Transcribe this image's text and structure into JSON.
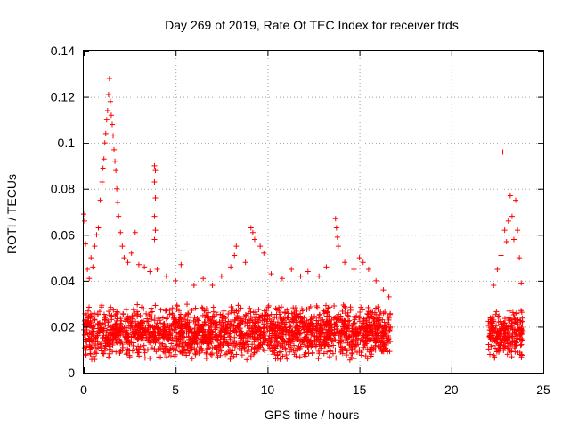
{
  "chart_data": {
    "type": "scatter",
    "title": "Day 269 of 2019, Rate Of TEC Index for receiver trds",
    "xlabel": "GPS time / hours",
    "ylabel": "ROTI / TECUs",
    "xlim": [
      0,
      25
    ],
    "ylim": [
      0,
      0.14
    ],
    "x_ticks": [
      0,
      5,
      10,
      15,
      20,
      25
    ],
    "y_ticks": [
      0,
      0.02,
      0.04,
      0.06,
      0.08,
      0.1,
      0.12,
      0.14
    ],
    "x_tick_labels": [
      "0",
      "5",
      "10",
      "15",
      "20",
      "25"
    ],
    "y_tick_labels": [
      "0",
      "0.02",
      "0.04",
      "0.06",
      "0.08",
      "0.1",
      "0.12",
      "0.14"
    ],
    "grid": true,
    "marker": "+",
    "color": "#ff0000",
    "series": [
      {
        "name": "ROTI",
        "segments": [
          {
            "x_range": [
              0.0,
              16.7
            ],
            "baseline_range": [
              0.005,
              0.03
            ]
          },
          {
            "x_range": [
              22.0,
              23.9
            ],
            "baseline_range": [
              0.006,
              0.028
            ]
          }
        ],
        "points": [
          {
            "x": 0.0,
            "y": 0.069
          },
          {
            "x": 0.05,
            "y": 0.066
          },
          {
            "x": 0.1,
            "y": 0.056
          },
          {
            "x": 0.2,
            "y": 0.045
          },
          {
            "x": 0.3,
            "y": 0.041
          },
          {
            "x": 0.4,
            "y": 0.05
          },
          {
            "x": 0.5,
            "y": 0.046
          },
          {
            "x": 0.6,
            "y": 0.055
          },
          {
            "x": 0.7,
            "y": 0.06
          },
          {
            "x": 0.8,
            "y": 0.063
          },
          {
            "x": 0.9,
            "y": 0.075
          },
          {
            "x": 1.0,
            "y": 0.083
          },
          {
            "x": 1.05,
            "y": 0.089
          },
          {
            "x": 1.1,
            "y": 0.093
          },
          {
            "x": 1.15,
            "y": 0.1
          },
          {
            "x": 1.2,
            "y": 0.104
          },
          {
            "x": 1.25,
            "y": 0.11
          },
          {
            "x": 1.3,
            "y": 0.114
          },
          {
            "x": 1.35,
            "y": 0.121
          },
          {
            "x": 1.4,
            "y": 0.128
          },
          {
            "x": 1.45,
            "y": 0.118
          },
          {
            "x": 1.5,
            "y": 0.112
          },
          {
            "x": 1.55,
            "y": 0.108
          },
          {
            "x": 1.6,
            "y": 0.103
          },
          {
            "x": 1.65,
            "y": 0.097
          },
          {
            "x": 1.7,
            "y": 0.092
          },
          {
            "x": 1.75,
            "y": 0.088
          },
          {
            "x": 1.8,
            "y": 0.08
          },
          {
            "x": 1.85,
            "y": 0.074
          },
          {
            "x": 1.9,
            "y": 0.068
          },
          {
            "x": 2.0,
            "y": 0.061
          },
          {
            "x": 2.1,
            "y": 0.055
          },
          {
            "x": 2.2,
            "y": 0.05
          },
          {
            "x": 2.4,
            "y": 0.048
          },
          {
            "x": 2.6,
            "y": 0.052
          },
          {
            "x": 2.8,
            "y": 0.061
          },
          {
            "x": 3.0,
            "y": 0.047
          },
          {
            "x": 3.3,
            "y": 0.046
          },
          {
            "x": 3.6,
            "y": 0.044
          },
          {
            "x": 3.85,
            "y": 0.09
          },
          {
            "x": 3.9,
            "y": 0.088
          },
          {
            "x": 3.85,
            "y": 0.083
          },
          {
            "x": 3.9,
            "y": 0.076
          },
          {
            "x": 3.85,
            "y": 0.068
          },
          {
            "x": 3.9,
            "y": 0.062
          },
          {
            "x": 3.85,
            "y": 0.058
          },
          {
            "x": 4.0,
            "y": 0.045
          },
          {
            "x": 4.5,
            "y": 0.042
          },
          {
            "x": 5.0,
            "y": 0.04
          },
          {
            "x": 5.3,
            "y": 0.047
          },
          {
            "x": 5.4,
            "y": 0.053
          },
          {
            "x": 6.0,
            "y": 0.038
          },
          {
            "x": 6.5,
            "y": 0.041
          },
          {
            "x": 7.0,
            "y": 0.038
          },
          {
            "x": 7.5,
            "y": 0.042
          },
          {
            "x": 8.0,
            "y": 0.046
          },
          {
            "x": 8.2,
            "y": 0.051
          },
          {
            "x": 8.3,
            "y": 0.055
          },
          {
            "x": 8.8,
            "y": 0.048
          },
          {
            "x": 9.1,
            "y": 0.063
          },
          {
            "x": 9.2,
            "y": 0.061
          },
          {
            "x": 9.3,
            "y": 0.058
          },
          {
            "x": 9.6,
            "y": 0.055
          },
          {
            "x": 9.8,
            "y": 0.052
          },
          {
            "x": 10.2,
            "y": 0.043
          },
          {
            "x": 10.8,
            "y": 0.041
          },
          {
            "x": 11.3,
            "y": 0.045
          },
          {
            "x": 11.8,
            "y": 0.042
          },
          {
            "x": 12.2,
            "y": 0.044
          },
          {
            "x": 12.8,
            "y": 0.042
          },
          {
            "x": 13.2,
            "y": 0.046
          },
          {
            "x": 13.7,
            "y": 0.067
          },
          {
            "x": 13.75,
            "y": 0.063
          },
          {
            "x": 13.8,
            "y": 0.059
          },
          {
            "x": 13.85,
            "y": 0.055
          },
          {
            "x": 14.2,
            "y": 0.048
          },
          {
            "x": 14.7,
            "y": 0.045
          },
          {
            "x": 15.0,
            "y": 0.05
          },
          {
            "x": 15.2,
            "y": 0.048
          },
          {
            "x": 15.5,
            "y": 0.045
          },
          {
            "x": 15.9,
            "y": 0.04
          },
          {
            "x": 16.3,
            "y": 0.036
          },
          {
            "x": 16.6,
            "y": 0.033
          },
          {
            "x": 22.3,
            "y": 0.038
          },
          {
            "x": 22.5,
            "y": 0.045
          },
          {
            "x": 22.7,
            "y": 0.051
          },
          {
            "x": 22.8,
            "y": 0.096
          },
          {
            "x": 22.9,
            "y": 0.062
          },
          {
            "x": 23.0,
            "y": 0.057
          },
          {
            "x": 23.1,
            "y": 0.066
          },
          {
            "x": 23.2,
            "y": 0.077
          },
          {
            "x": 23.3,
            "y": 0.068
          },
          {
            "x": 23.4,
            "y": 0.058
          },
          {
            "x": 23.5,
            "y": 0.075
          },
          {
            "x": 23.6,
            "y": 0.062
          },
          {
            "x": 23.7,
            "y": 0.05
          },
          {
            "x": 23.8,
            "y": 0.039
          }
        ]
      }
    ]
  }
}
